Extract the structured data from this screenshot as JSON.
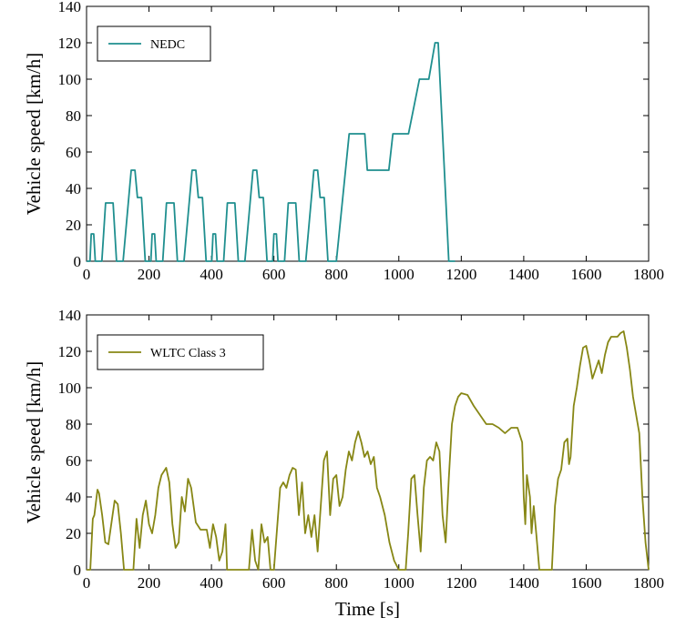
{
  "chart_data": [
    {
      "type": "line",
      "ylabel": "Vehicle speed [km/h]",
      "xlim": [
        0,
        1800
      ],
      "xticks": [
        0,
        200,
        400,
        600,
        800,
        1000,
        1200,
        1400,
        1600,
        1800
      ],
      "ylim": [
        0,
        140
      ],
      "yticks": [
        0,
        20,
        40,
        60,
        80,
        100,
        120,
        140
      ],
      "legend": "upper left",
      "x": [
        0,
        11,
        15,
        23,
        28,
        49,
        61,
        85,
        96,
        117,
        143,
        155,
        163,
        176,
        188,
        195,
        206,
        210,
        218,
        223,
        244,
        256,
        280,
        291,
        312,
        338,
        350,
        358,
        371,
        383,
        390,
        401,
        405,
        413,
        418,
        439,
        451,
        475,
        486,
        507,
        533,
        545,
        553,
        566,
        578,
        585,
        596,
        600,
        608,
        613,
        634,
        646,
        670,
        681,
        702,
        728,
        740,
        748,
        761,
        773,
        780,
        800,
        841,
        891,
        899,
        968,
        981,
        1031,
        1066,
        1096,
        1116,
        1126,
        1160,
        1180
      ],
      "series": [
        {
          "name": "NEDC",
          "color": "#1f8f8f",
          "values": [
            0,
            0,
            15,
            15,
            0,
            0,
            32,
            32,
            0,
            0,
            50,
            50,
            35,
            35,
            0,
            0,
            0,
            15,
            15,
            0,
            0,
            32,
            32,
            0,
            0,
            50,
            50,
            35,
            35,
            0,
            0,
            0,
            15,
            15,
            0,
            0,
            32,
            32,
            0,
            0,
            50,
            50,
            35,
            35,
            0,
            0,
            0,
            15,
            15,
            0,
            0,
            32,
            32,
            0,
            0,
            50,
            50,
            35,
            35,
            0,
            0,
            0,
            70,
            70,
            50,
            50,
            70,
            70,
            100,
            100,
            120,
            120,
            0,
            0
          ]
        }
      ]
    },
    {
      "type": "line",
      "xlabel": "Time [s]",
      "ylabel": "Vehicle speed [km/h]",
      "xlim": [
        0,
        1800
      ],
      "xticks": [
        0,
        200,
        400,
        600,
        800,
        1000,
        1200,
        1400,
        1600,
        1800
      ],
      "ylim": [
        0,
        140
      ],
      "yticks": [
        0,
        20,
        40,
        60,
        80,
        100,
        120,
        140
      ],
      "legend": "upper left",
      "x": [
        0,
        12,
        20,
        25,
        35,
        40,
        50,
        60,
        70,
        80,
        90,
        100,
        110,
        120,
        150,
        160,
        170,
        180,
        190,
        200,
        210,
        220,
        230,
        240,
        255,
        265,
        275,
        285,
        295,
        305,
        315,
        325,
        335,
        350,
        365,
        385,
        395,
        405,
        415,
        425,
        435,
        445,
        450,
        520,
        530,
        540,
        550,
        560,
        570,
        580,
        589,
        600,
        620,
        630,
        640,
        650,
        660,
        670,
        680,
        690,
        700,
        710,
        720,
        730,
        740,
        750,
        760,
        770,
        780,
        790,
        800,
        810,
        820,
        830,
        840,
        850,
        860,
        870,
        880,
        890,
        900,
        910,
        920,
        930,
        940,
        955,
        970,
        985,
        1000,
        1022,
        1030,
        1040,
        1050,
        1060,
        1070,
        1080,
        1090,
        1100,
        1110,
        1120,
        1130,
        1140,
        1150,
        1160,
        1170,
        1180,
        1190,
        1200,
        1220,
        1240,
        1260,
        1280,
        1300,
        1320,
        1340,
        1360,
        1380,
        1395,
        1400,
        1405,
        1410,
        1420,
        1425,
        1432,
        1440,
        1450,
        1477,
        1490,
        1500,
        1510,
        1520,
        1530,
        1540,
        1545,
        1550,
        1560,
        1570,
        1580,
        1590,
        1600,
        1610,
        1620,
        1630,
        1640,
        1650,
        1660,
        1670,
        1680,
        1690,
        1700,
        1710,
        1720,
        1730,
        1740,
        1750,
        1760,
        1770,
        1780,
        1790,
        1800
      ],
      "series": [
        {
          "name": "WLTC Class 3",
          "color": "#878715",
          "values": [
            0,
            0,
            28,
            30,
            44,
            42,
            30,
            15,
            14,
            26,
            38,
            36,
            20,
            0,
            0,
            28,
            12,
            30,
            38,
            25,
            20,
            30,
            45,
            52,
            56,
            48,
            25,
            12,
            15,
            40,
            32,
            50,
            45,
            26,
            22,
            22,
            12,
            25,
            18,
            5,
            10,
            25,
            0,
            0,
            22,
            5,
            0,
            25,
            15,
            18,
            0,
            0,
            45,
            48,
            45,
            52,
            56,
            55,
            30,
            48,
            20,
            30,
            18,
            30,
            10,
            35,
            60,
            65,
            30,
            50,
            52,
            35,
            40,
            55,
            65,
            60,
            70,
            76,
            70,
            62,
            65,
            58,
            62,
            45,
            40,
            30,
            15,
            5,
            0,
            0,
            20,
            50,
            52,
            30,
            10,
            45,
            60,
            62,
            60,
            70,
            65,
            30,
            15,
            50,
            80,
            90,
            95,
            97,
            96,
            90,
            85,
            80,
            80,
            78,
            75,
            78,
            78,
            70,
            40,
            25,
            52,
            40,
            20,
            35,
            20,
            0,
            0,
            0,
            35,
            50,
            55,
            70,
            72,
            58,
            62,
            90,
            100,
            112,
            122,
            123,
            115,
            105,
            110,
            115,
            108,
            118,
            125,
            128,
            128,
            128,
            130,
            131,
            122,
            110,
            95,
            85,
            75,
            40,
            15,
            0
          ]
        }
      ]
    }
  ]
}
